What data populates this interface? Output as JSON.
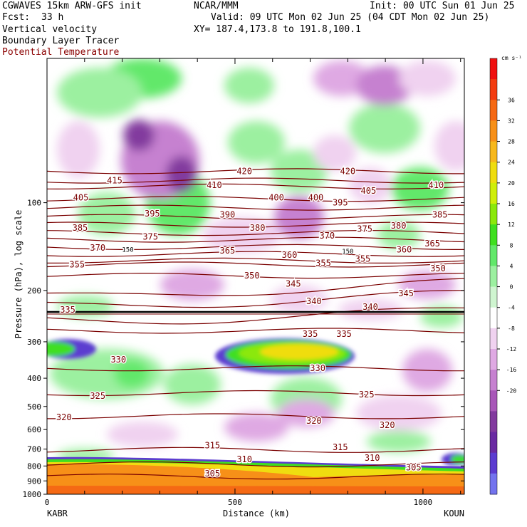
{
  "header": {
    "model": "CGWAVES 15km ARW-GFS init",
    "org": "NCAR/MMM",
    "init": "Init: 00 UTC Sun 01 Jun 25",
    "fcst_label": "Fcst:",
    "fcst_value": "33 h",
    "valid": "Valid: 09 UTC Mon 02 Jun 25 (04 CDT Mon 02 Jun 25)",
    "field1": "Vertical velocity",
    "field2": "Boundary Layer Tracer",
    "field3": "Potential Temperature",
    "xy": "XY= 187.4,173.8 to 191.8,100.1"
  },
  "colors": {
    "theta_line": "#7a0000",
    "text_red": "#8b0000"
  },
  "chart_data": {
    "type": "heatmap",
    "xlabel": "Distance (km)",
    "ylabel": "Pressure (hPa), log scale",
    "x_ticks": [
      0,
      500,
      1000
    ],
    "xlim": [
      0,
      1110
    ],
    "y_ticks": [
      100,
      200,
      300,
      400,
      500,
      600,
      700,
      800,
      900,
      1000
    ],
    "y_scale": "log",
    "left_station": "KABR",
    "right_station": "KOUN",
    "colorbar": {
      "unit": "cm s⁻¹",
      "ticks": [
        36,
        32,
        28,
        24,
        20,
        16,
        12,
        8,
        4,
        0,
        -4,
        -8,
        -12,
        -16,
        -20
      ],
      "colors": [
        "#f01010",
        "#f33c10",
        "#f56914",
        "#f79018",
        "#f7b81c",
        "#efdd10",
        "#cfee0a",
        "#8be80c",
        "#3fdf20",
        "#62e86a",
        "#9cf0a0",
        "#cff5d0",
        "#ffffff",
        "#f0d2f0",
        "#dfa9e3",
        "#c681d0",
        "#a857b8",
        "#823a9e",
        "#6a2aa2",
        "#5c3cd0",
        "#7373ee"
      ]
    },
    "theta_contours": [
      {
        "label": "420",
        "p": 78
      },
      {
        "label": "415",
        "p": 84
      },
      {
        "label": "410",
        "p": 88
      },
      {
        "label": "405",
        "p": 97
      },
      {
        "label": "400",
        "p": 104
      },
      {
        "label": "395",
        "p": 112
      },
      {
        "label": "390",
        "p": 119
      },
      {
        "label": "385",
        "p": 127
      },
      {
        "label": "380",
        "p": 134
      },
      {
        "label": "375",
        "p": 142
      },
      {
        "label": "370",
        "p": 150
      },
      {
        "label": "365",
        "p": 158
      },
      {
        "label": "360",
        "p": 163
      },
      {
        "label": "355",
        "p": 178
      },
      {
        "label": "350",
        "p": 195
      },
      {
        "label": "345",
        "p": 212
      },
      {
        "label": "340",
        "p": 240
      },
      {
        "label": "335",
        "p": 275
      },
      {
        "label": "330",
        "p": 370
      },
      {
        "label": "325",
        "p": 450
      },
      {
        "label": "320",
        "p": 540
      },
      {
        "label": "315",
        "p": 705
      },
      {
        "label": "310",
        "p": 790
      },
      {
        "label": "305",
        "p": 870
      }
    ],
    "contour_labels": [
      {
        "text": "415",
        "x": 180,
        "p": 84
      },
      {
        "text": "420",
        "x": 525,
        "p": 78
      },
      {
        "text": "420",
        "x": 800,
        "p": 78
      },
      {
        "text": "410",
        "x": 445,
        "p": 87
      },
      {
        "text": "410",
        "x": 1035,
        "p": 87
      },
      {
        "text": "405",
        "x": 90,
        "p": 96
      },
      {
        "text": "405",
        "x": 855,
        "p": 91
      },
      {
        "text": "400",
        "x": 610,
        "p": 96
      },
      {
        "text": "400",
        "x": 715,
        "p": 96
      },
      {
        "text": "395",
        "x": 280,
        "p": 109
      },
      {
        "text": "395",
        "x": 780,
        "p": 100
      },
      {
        "text": "390",
        "x": 480,
        "p": 110
      },
      {
        "text": "385",
        "x": 88,
        "p": 122
      },
      {
        "text": "385",
        "x": 1045,
        "p": 110
      },
      {
        "text": "380",
        "x": 560,
        "p": 122
      },
      {
        "text": "380",
        "x": 935,
        "p": 120
      },
      {
        "text": "375",
        "x": 275,
        "p": 131
      },
      {
        "text": "375",
        "x": 845,
        "p": 123
      },
      {
        "text": "370",
        "x": 745,
        "p": 130
      },
      {
        "text": "370",
        "x": 135,
        "p": 143
      },
      {
        "text": "365",
        "x": 480,
        "p": 146
      },
      {
        "text": "365",
        "x": 1025,
        "p": 138
      },
      {
        "text": "360",
        "x": 645,
        "p": 151
      },
      {
        "text": "360",
        "x": 950,
        "p": 145
      },
      {
        "text": "355",
        "x": 80,
        "p": 163
      },
      {
        "text": "355",
        "x": 735,
        "p": 161
      },
      {
        "text": "355",
        "x": 840,
        "p": 156
      },
      {
        "text": "350",
        "x": 545,
        "p": 178
      },
      {
        "text": "350",
        "x": 1040,
        "p": 168
      },
      {
        "text": "345",
        "x": 655,
        "p": 190
      },
      {
        "text": "345",
        "x": 955,
        "p": 205
      },
      {
        "text": "340",
        "x": 710,
        "p": 218
      },
      {
        "text": "340",
        "x": 860,
        "p": 228
      },
      {
        "text": "335",
        "x": 55,
        "p": 233
      },
      {
        "text": "335",
        "x": 700,
        "p": 282
      },
      {
        "text": "335",
        "x": 790,
        "p": 282
      },
      {
        "text": "330",
        "x": 190,
        "p": 345
      },
      {
        "text": "330",
        "x": 720,
        "p": 370
      },
      {
        "text": "325",
        "x": 135,
        "p": 460
      },
      {
        "text": "325",
        "x": 850,
        "p": 455
      },
      {
        "text": "320",
        "x": 45,
        "p": 545
      },
      {
        "text": "320",
        "x": 710,
        "p": 560
      },
      {
        "text": "320",
        "x": 905,
        "p": 580
      },
      {
        "text": "315",
        "x": 440,
        "p": 680
      },
      {
        "text": "315",
        "x": 780,
        "p": 690
      },
      {
        "text": "310",
        "x": 525,
        "p": 760
      },
      {
        "text": "310",
        "x": 865,
        "p": 750
      },
      {
        "text": "305",
        "x": 440,
        "p": 850
      },
      {
        "text": "305",
        "x": 975,
        "p": 810
      }
    ],
    "tracer_labels": [
      {
        "text": "150",
        "x": 215,
        "p": 145
      },
      {
        "text": "150",
        "x": 800,
        "p": 147
      }
    ]
  }
}
